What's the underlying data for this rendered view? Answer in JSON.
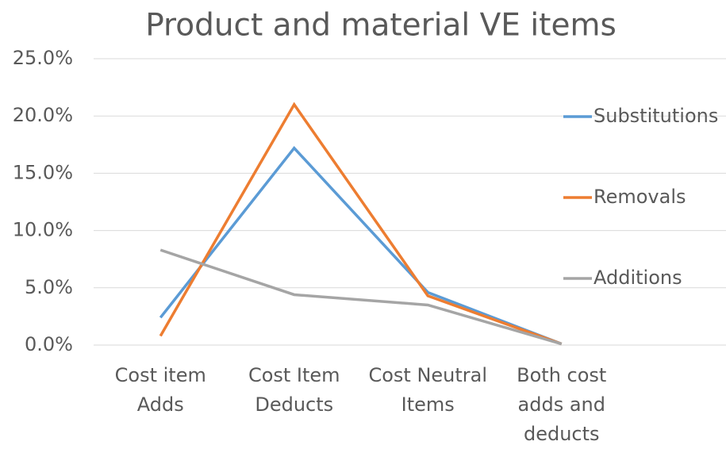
{
  "chart_data": {
    "type": "line",
    "title": "Product and material VE items",
    "categories": [
      "Cost item Adds",
      "Cost Item Deducts",
      "Cost Neutral Items",
      "Both cost adds and deducts"
    ],
    "series": [
      {
        "name": "Substitutions",
        "color": "#5b9bd5",
        "values": [
          2.4,
          17.2,
          4.6,
          0.1
        ]
      },
      {
        "name": "Removals",
        "color": "#ed7d31",
        "values": [
          0.8,
          21.0,
          4.3,
          0.1
        ]
      },
      {
        "name": "Additions",
        "color": "#a5a5a5",
        "values": [
          8.3,
          4.4,
          3.5,
          0.1
        ]
      }
    ],
    "ylim": [
      0,
      25
    ],
    "yticks": [
      {
        "value": 0,
        "label": "0.0%"
      },
      {
        "value": 5,
        "label": "5.0%"
      },
      {
        "value": 10,
        "label": "10.0%"
      },
      {
        "value": 15,
        "label": "15.0%"
      },
      {
        "value": 20,
        "label": "20.0%"
      },
      {
        "value": 25,
        "label": "25.0%"
      }
    ],
    "grid": true,
    "legend": "right"
  }
}
